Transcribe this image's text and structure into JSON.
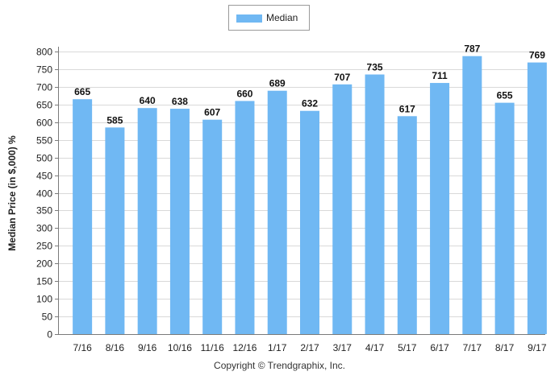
{
  "chart_data": {
    "type": "bar",
    "categories": [
      "7/16",
      "8/16",
      "9/16",
      "10/16",
      "11/16",
      "12/16",
      "1/17",
      "2/17",
      "3/17",
      "4/17",
      "5/17",
      "6/17",
      "7/17",
      "8/17",
      "9/17"
    ],
    "series": [
      {
        "name": "Median",
        "values": [
          665,
          585,
          640,
          638,
          607,
          660,
          689,
          632,
          707,
          735,
          617,
          711,
          787,
          655,
          769
        ],
        "color": "#70b8f3"
      }
    ],
    "ylabel": "Median Price (in $,000) %",
    "xlabel": "",
    "ylim": [
      0,
      800
    ],
    "yticks": [
      0,
      50,
      100,
      150,
      200,
      250,
      300,
      350,
      400,
      450,
      500,
      550,
      600,
      650,
      700,
      750,
      800
    ],
    "grid": true,
    "legend_position": "top-center",
    "data_labels": true
  },
  "footer": {
    "copyright": "Copyright © Trendgraphix, Inc."
  }
}
